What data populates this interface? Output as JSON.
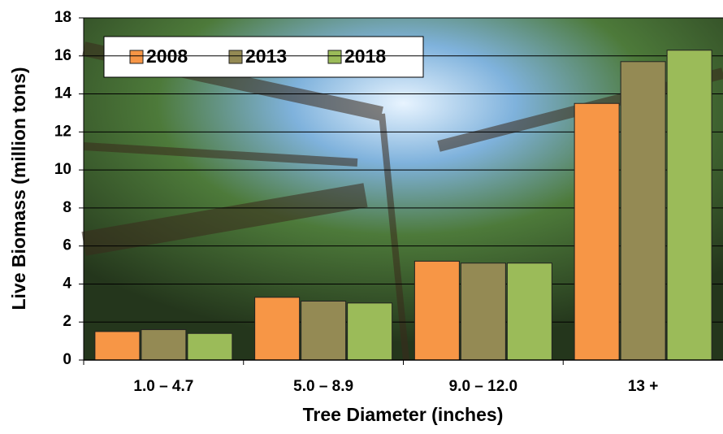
{
  "chart_data": {
    "type": "bar",
    "categories": [
      "1.0 – 4.7",
      "5.0 – 8.9",
      "9.0 – 12.0",
      "13 +"
    ],
    "series": [
      {
        "name": "2008",
        "color": "#f79646",
        "values": [
          1.5,
          3.3,
          5.2,
          13.5
        ]
      },
      {
        "name": "2013",
        "color": "#948a54",
        "values": [
          1.6,
          3.1,
          5.1,
          15.7
        ]
      },
      {
        "name": "2018",
        "color": "#9bbb59",
        "values": [
          1.4,
          3.0,
          5.1,
          16.3
        ]
      }
    ],
    "x_label": "Tree Diameter (inches)",
    "y_label": "Live Biomass (million tons)",
    "ylim": [
      0,
      18
    ],
    "yticks": [
      0,
      2,
      4,
      6,
      8,
      10,
      12,
      14,
      16,
      18
    ],
    "grid": true,
    "legend": "top-left"
  }
}
